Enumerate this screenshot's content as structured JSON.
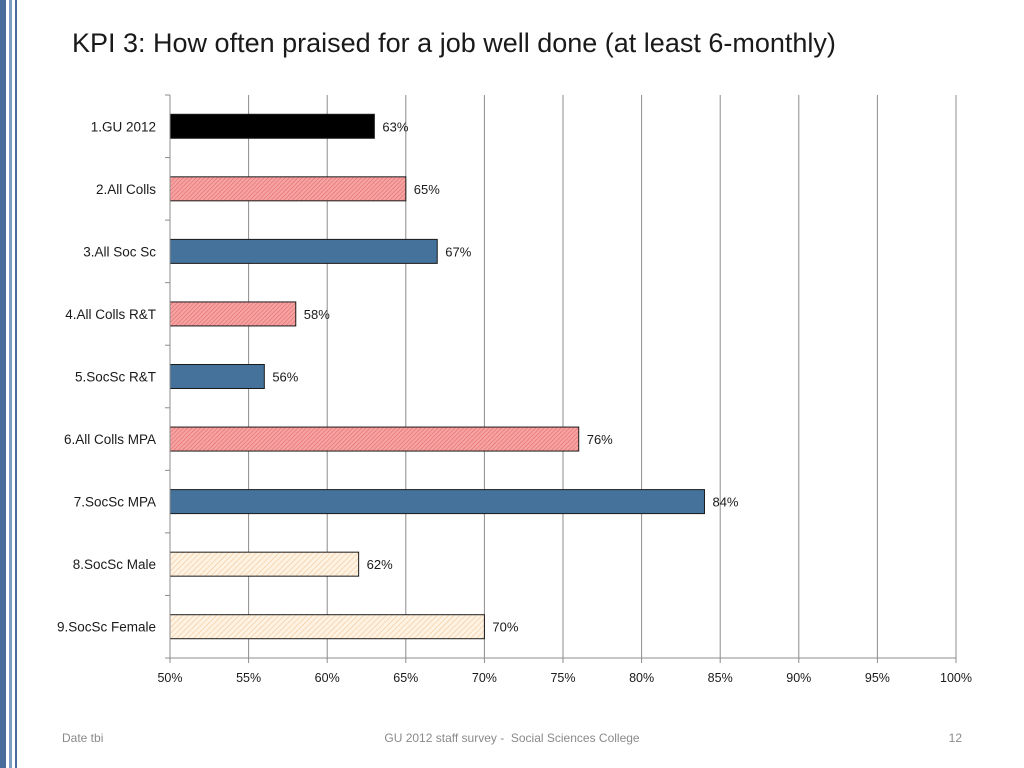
{
  "slide": {
    "title": "KPI 3: How often praised for a job well done (at least 6-monthly)",
    "footer": {
      "date": "Date tbi",
      "center": "GU 2012 staff survey -  Social Sciences College",
      "page_number": "12"
    }
  },
  "colors": {
    "accent_stripe": "#4A6C9B",
    "gridline": "#8C8C8C",
    "footer_text": "#8A8A8A"
  },
  "chart_data": {
    "type": "bar",
    "title": "",
    "xlabel": "",
    "ylabel": "",
    "categories": [
      "1.GU 2012",
      "2.All Colls",
      "3.All Soc Sc",
      "4.All Colls R&T",
      "5.SocSc R&T",
      "6.All Colls MPA",
      "7.SocSc MPA",
      "8.SocSc Male",
      "9.SocSc Female"
    ],
    "values": [
      63,
      65,
      67,
      58,
      56,
      76,
      84,
      62,
      70
    ],
    "value_labels": [
      "63%",
      "65%",
      "67%",
      "58%",
      "56%",
      "76%",
      "84%",
      "62%",
      "70%"
    ],
    "bar_colors": [
      "#000000",
      "#F28C8C",
      "#44729B",
      "#F28C8C",
      "#44729B",
      "#F28C8C",
      "#44729B",
      "#FCE4CA",
      "#FCE4CA"
    ],
    "xlim": [
      50,
      100
    ],
    "xticks": [
      50,
      55,
      60,
      65,
      70,
      75,
      80,
      85,
      90,
      95,
      100
    ],
    "xtick_labels": [
      "50%",
      "55%",
      "60%",
      "65%",
      "70%",
      "75%",
      "80%",
      "85%",
      "90%",
      "95%",
      "100%"
    ],
    "grid": true
  }
}
